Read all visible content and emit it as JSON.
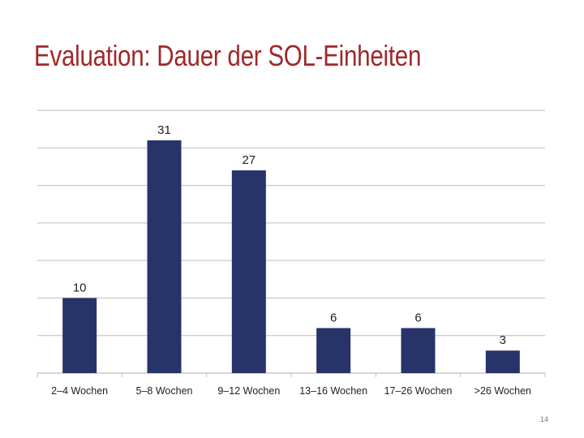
{
  "slide": {
    "title": "Evaluation: Dauer der SOL-Einheiten",
    "page_number": "14"
  },
  "colors": {
    "title": "#a0282a",
    "bar": "#273469",
    "grid": "#bdbdbd"
  },
  "chart_data": {
    "type": "bar",
    "categories": [
      "2–4 Wochen",
      "5–8 Wochen",
      "9–12 Wochen",
      "13–16 Wochen",
      "17–26 Wochen",
      ">26 Wochen"
    ],
    "values": [
      10,
      31,
      27,
      6,
      6,
      3
    ],
    "title": "",
    "xlabel": "",
    "ylabel": "",
    "ylim": [
      0,
      35
    ],
    "grid": true,
    "legend": "none",
    "data_labels": true
  }
}
